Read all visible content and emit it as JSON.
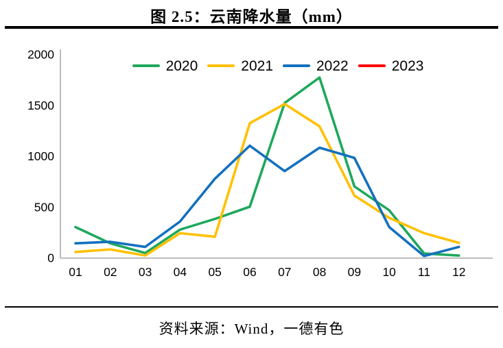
{
  "title": "图 2.5：云南降水量（mm）",
  "footer": "资料来源：Wind，一德有色",
  "chart_data": {
    "type": "line",
    "title": "图 2.5：云南降水量（mm）",
    "xlabel": "",
    "ylabel": "",
    "categories": [
      "01",
      "02",
      "03",
      "04",
      "05",
      "06",
      "07",
      "08",
      "09",
      "10",
      "11",
      "12"
    ],
    "ylim": [
      0,
      2000
    ],
    "yticks": [
      0,
      500,
      1000,
      1500,
      2000
    ],
    "grid": false,
    "legend_position": "top-center-horizontal",
    "series": [
      {
        "name": "2020",
        "color": "#1EA85C",
        "values": [
          300,
          140,
          45,
          275,
          380,
          500,
          1520,
          1770,
          700,
          465,
          40,
          20
        ]
      },
      {
        "name": "2021",
        "color": "#FFC000",
        "values": [
          55,
          80,
          20,
          240,
          205,
          1320,
          1510,
          1290,
          610,
          390,
          240,
          145
        ]
      },
      {
        "name": "2022",
        "color": "#1470BE",
        "values": [
          140,
          155,
          105,
          355,
          775,
          1100,
          850,
          1080,
          980,
          300,
          15,
          105
        ]
      },
      {
        "name": "2023",
        "color": "#FF0000",
        "values": []
      }
    ],
    "axis_color": "#a6a6a6",
    "tick_label_color": "#000000"
  }
}
